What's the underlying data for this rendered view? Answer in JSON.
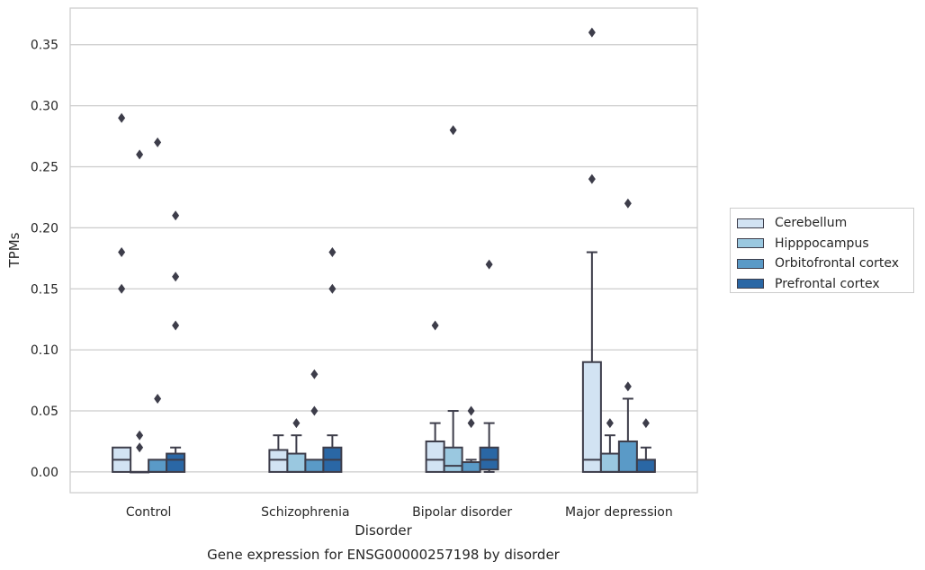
{
  "chart_data": {
    "type": "box",
    "title": "",
    "caption": "Gene expression for ENSG00000257198 by disorder",
    "xlabel": "Disorder",
    "ylabel": "TPMs",
    "categories": [
      "Control",
      "Schizophrenia",
      "Bipolar disorder",
      "Major depression"
    ],
    "yticks": [
      "0.00",
      "0.05",
      "0.10",
      "0.15",
      "0.20",
      "0.25",
      "0.30",
      "0.35"
    ],
    "ylim": [
      -0.017,
      0.38
    ],
    "grid": true,
    "legend_position": "right",
    "series": [
      {
        "name": "Cerebellum",
        "color": "#d2e3f3",
        "boxes": [
          {
            "q1": 0.0,
            "median": 0.01,
            "q3": 0.02,
            "whisker_low": 0.0,
            "whisker_high": 0.02,
            "outliers": [
              0.29,
              0.18,
              0.15
            ]
          },
          {
            "q1": 0.0,
            "median": 0.01,
            "q3": 0.018,
            "whisker_low": 0.0,
            "whisker_high": 0.03,
            "outliers": []
          },
          {
            "q1": 0.0,
            "median": 0.01,
            "q3": 0.025,
            "whisker_low": 0.0,
            "whisker_high": 0.04,
            "outliers": [
              0.12
            ]
          },
          {
            "q1": 0.0,
            "median": 0.01,
            "q3": 0.09,
            "whisker_low": 0.0,
            "whisker_high": 0.18,
            "outliers": [
              0.36,
              0.24
            ]
          }
        ]
      },
      {
        "name": "Hipppocampus",
        "color": "#9ac8e0",
        "boxes": [
          {
            "q1": 0.0,
            "median": 0.0,
            "q3": 0.0,
            "whisker_low": 0.0,
            "whisker_high": 0.0,
            "outliers": [
              0.26,
              0.03,
              0.02
            ]
          },
          {
            "q1": 0.0,
            "median": 0.0,
            "q3": 0.015,
            "whisker_low": 0.0,
            "whisker_high": 0.03,
            "outliers": [
              0.04
            ]
          },
          {
            "q1": 0.0,
            "median": 0.005,
            "q3": 0.02,
            "whisker_low": 0.0,
            "whisker_high": 0.05,
            "outliers": [
              0.28
            ]
          },
          {
            "q1": 0.0,
            "median": 0.0,
            "q3": 0.015,
            "whisker_low": 0.0,
            "whisker_high": 0.03,
            "outliers": [
              0.04
            ]
          }
        ]
      },
      {
        "name": "Orbitofrontal cortex",
        "color": "#5a9ac7",
        "boxes": [
          {
            "q1": 0.0,
            "median": 0.0,
            "q3": 0.01,
            "whisker_low": 0.0,
            "whisker_high": 0.01,
            "outliers": [
              0.27,
              0.06
            ]
          },
          {
            "q1": 0.0,
            "median": 0.0,
            "q3": 0.01,
            "whisker_low": 0.0,
            "whisker_high": 0.01,
            "outliers": [
              0.08,
              0.05
            ]
          },
          {
            "q1": 0.0,
            "median": 0.0,
            "q3": 0.008,
            "whisker_low": 0.0,
            "whisker_high": 0.01,
            "outliers": [
              0.05,
              0.04
            ]
          },
          {
            "q1": 0.0,
            "median": 0.0,
            "q3": 0.025,
            "whisker_low": 0.0,
            "whisker_high": 0.06,
            "outliers": [
              0.22,
              0.07
            ]
          }
        ]
      },
      {
        "name": "Prefrontal cortex",
        "color": "#2a67a5",
        "boxes": [
          {
            "q1": 0.0,
            "median": 0.01,
            "q3": 0.015,
            "whisker_low": 0.0,
            "whisker_high": 0.02,
            "outliers": [
              0.21,
              0.16,
              0.12
            ]
          },
          {
            "q1": 0.0,
            "median": 0.01,
            "q3": 0.02,
            "whisker_low": 0.0,
            "whisker_high": 0.03,
            "outliers": [
              0.18,
              0.15
            ]
          },
          {
            "q1": 0.002,
            "median": 0.01,
            "q3": 0.02,
            "whisker_low": 0.0,
            "whisker_high": 0.04,
            "outliers": [
              0.17
            ]
          },
          {
            "q1": 0.0,
            "median": 0.0,
            "q3": 0.01,
            "whisker_low": 0.0,
            "whisker_high": 0.02,
            "outliers": [
              0.04
            ]
          }
        ]
      }
    ]
  }
}
